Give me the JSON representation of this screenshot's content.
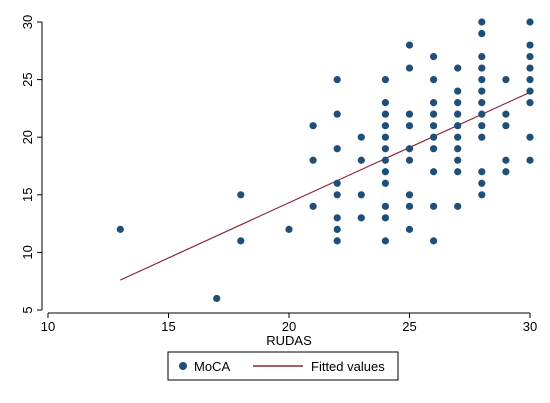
{
  "chart_data": {
    "type": "scatter",
    "xlabel": "RUDAS",
    "ylabel": "",
    "xlim": [
      10,
      30
    ],
    "ylim": [
      5,
      30
    ],
    "xticks": [
      10,
      15,
      20,
      25,
      30
    ],
    "yticks": [
      5,
      10,
      15,
      20,
      25,
      30
    ],
    "grid": false,
    "legend_position": "bottom",
    "colors": {
      "points": "#1f4e79",
      "fit_line": "#8b2a3c",
      "axis": "#000000",
      "legend_border": "#000000"
    },
    "series": [
      {
        "name": "MoCA",
        "kind": "scatter",
        "points": [
          [
            13,
            12
          ],
          [
            17,
            6
          ],
          [
            18,
            15
          ],
          [
            18,
            11
          ],
          [
            20,
            12
          ],
          [
            21,
            21
          ],
          [
            21,
            18
          ],
          [
            21,
            14
          ],
          [
            22,
            25
          ],
          [
            22,
            22
          ],
          [
            22,
            19
          ],
          [
            22,
            16
          ],
          [
            22,
            15
          ],
          [
            22,
            13
          ],
          [
            22,
            12
          ],
          [
            22,
            11
          ],
          [
            23,
            20
          ],
          [
            23,
            18
          ],
          [
            23,
            15
          ],
          [
            23,
            13
          ],
          [
            24,
            25
          ],
          [
            24,
            23
          ],
          [
            24,
            22
          ],
          [
            24,
            21
          ],
          [
            24,
            20
          ],
          [
            24,
            19
          ],
          [
            24,
            18
          ],
          [
            24,
            17
          ],
          [
            24,
            16
          ],
          [
            24,
            14
          ],
          [
            24,
            13
          ],
          [
            24,
            11
          ],
          [
            25,
            28
          ],
          [
            25,
            26
          ],
          [
            25,
            22
          ],
          [
            25,
            21
          ],
          [
            25,
            19
          ],
          [
            25,
            18
          ],
          [
            25,
            15
          ],
          [
            25,
            14
          ],
          [
            25,
            12
          ],
          [
            26,
            27
          ],
          [
            26,
            25
          ],
          [
            26,
            23
          ],
          [
            26,
            22
          ],
          [
            26,
            21
          ],
          [
            26,
            20
          ],
          [
            26,
            19
          ],
          [
            26,
            17
          ],
          [
            26,
            14
          ],
          [
            26,
            11
          ],
          [
            27,
            26
          ],
          [
            27,
            24
          ],
          [
            27,
            23
          ],
          [
            27,
            22
          ],
          [
            27,
            21
          ],
          [
            27,
            20
          ],
          [
            27,
            19
          ],
          [
            27,
            18
          ],
          [
            27,
            17
          ],
          [
            27,
            14
          ],
          [
            28,
            30
          ],
          [
            28,
            29
          ],
          [
            28,
            27
          ],
          [
            28,
            26
          ],
          [
            28,
            25
          ],
          [
            28,
            24
          ],
          [
            28,
            23
          ],
          [
            28,
            22
          ],
          [
            28,
            21
          ],
          [
            28,
            20
          ],
          [
            28,
            17
          ],
          [
            28,
            16
          ],
          [
            28,
            15
          ],
          [
            29,
            25
          ],
          [
            29,
            22
          ],
          [
            29,
            21
          ],
          [
            29,
            18
          ],
          [
            29,
            17
          ],
          [
            30,
            30
          ],
          [
            30,
            28
          ],
          [
            30,
            27
          ],
          [
            30,
            26
          ],
          [
            30,
            25
          ],
          [
            30,
            24
          ],
          [
            30,
            23
          ],
          [
            30,
            20
          ],
          [
            30,
            18
          ]
        ]
      },
      {
        "name": "Fitted values",
        "kind": "line",
        "points": [
          [
            13,
            7.6
          ],
          [
            30,
            23.9
          ]
        ]
      }
    ]
  }
}
